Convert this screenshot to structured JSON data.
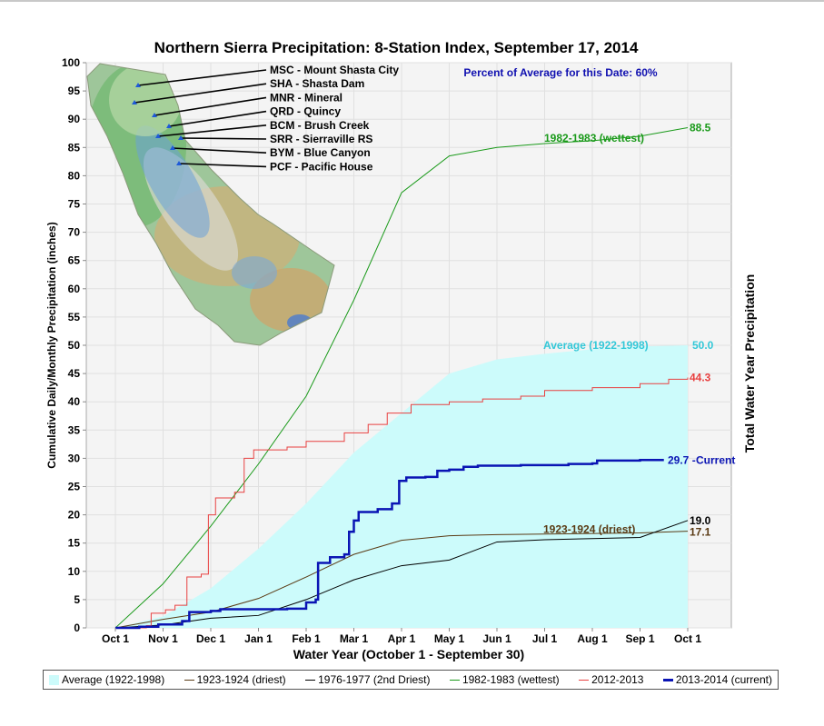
{
  "chart_data": {
    "type": "line",
    "title": "Northern Sierra Precipitation: 8-Station Index, September 17, 2014",
    "xlabel": "Water Year (October 1 - September 30)",
    "ylabel": "Cumulative Daily/Monthly Precipitation (inches)",
    "ylabel_right": "Total Water Year Precipitation",
    "annotation": "Percent of Average for this Date: 60%",
    "x_ticks": [
      "Oct 1",
      "Nov 1",
      "Dec 1",
      "Jan 1",
      "Feb 1",
      "Mar 1",
      "Apr 1",
      "May 1",
      "Jun 1",
      "Jul 1",
      "Aug 1",
      "Sep 1",
      "Oct 1"
    ],
    "y_ticks": [
      0,
      5,
      10,
      15,
      20,
      25,
      30,
      35,
      40,
      45,
      50,
      55,
      60,
      65,
      70,
      75,
      80,
      85,
      90,
      95,
      100
    ],
    "ylim": [
      0,
      100
    ],
    "grid": true,
    "legend_position": "bottom",
    "stations": [
      "MSC - Mount Shasta City",
      "SHA - Shasta Dam",
      "MNR - Mineral",
      "QRD - Quincy",
      "BCM - Brush Creek",
      "SRR - Sierraville RS",
      "BYM - Blue Canyon",
      "PCF - Pacific House"
    ],
    "series": [
      {
        "name": "Average (1922-1998)",
        "label": "Average (1922-1998)",
        "total": "50.0",
        "color": "#ccfbfb",
        "label_color": "#33c8d8",
        "points": [
          [
            0,
            0
          ],
          [
            1,
            2
          ],
          [
            2,
            7
          ],
          [
            3,
            14
          ],
          [
            4,
            22
          ],
          [
            5,
            31
          ],
          [
            6,
            38
          ],
          [
            7,
            45
          ],
          [
            8,
            47.5
          ],
          [
            9,
            48.5
          ],
          [
            10,
            49.3
          ],
          [
            11,
            49.8
          ],
          [
            12,
            50
          ]
        ]
      },
      {
        "name": "1923-1924 (driest)",
        "label": "1923-1924 (driest)",
        "total": "17.1",
        "color": "#5a3a14",
        "label_color": "#5a3a14",
        "points": [
          [
            0,
            0
          ],
          [
            1,
            1.5
          ],
          [
            2,
            2.8
          ],
          [
            3,
            5.2
          ],
          [
            4,
            9
          ],
          [
            5,
            13
          ],
          [
            6,
            15.5
          ],
          [
            7,
            16.3
          ],
          [
            8,
            16.5
          ],
          [
            9,
            16.6
          ],
          [
            10,
            16.7
          ],
          [
            11,
            16.8
          ],
          [
            12,
            17.1
          ]
        ]
      },
      {
        "name": "1976-1977 (2nd Driest)",
        "label": "",
        "total": "19.0",
        "color": "#000000",
        "label_color": "#000000",
        "points": [
          [
            0,
            0
          ],
          [
            1,
            0.5
          ],
          [
            2,
            1.7
          ],
          [
            3,
            2.2
          ],
          [
            4,
            5
          ],
          [
            5,
            8.5
          ],
          [
            6,
            11
          ],
          [
            7,
            12
          ],
          [
            8,
            15.2
          ],
          [
            9,
            15.6
          ],
          [
            10,
            15.8
          ],
          [
            11,
            16
          ],
          [
            12,
            19
          ]
        ]
      },
      {
        "name": "1982-1983 (wettest)",
        "label": "1982-1983 (wettest)",
        "total": "88.5",
        "color": "#1a9a1a",
        "label_color": "#1a9a1a",
        "points": [
          [
            0,
            0
          ],
          [
            1,
            7.8
          ],
          [
            2,
            18
          ],
          [
            3,
            29
          ],
          [
            4,
            41
          ],
          [
            5,
            58
          ],
          [
            6,
            77
          ],
          [
            7,
            83.5
          ],
          [
            8,
            85
          ],
          [
            9,
            85.7
          ],
          [
            10,
            86.2
          ],
          [
            11,
            87
          ],
          [
            12,
            88.5
          ]
        ]
      },
      {
        "name": "2012-2013",
        "label": "",
        "total": "44.3",
        "color": "#e84040",
        "label_color": "#e84040",
        "points": [
          [
            0,
            0
          ],
          [
            0.65,
            0.4
          ],
          [
            0.75,
            2.6
          ],
          [
            1.05,
            3.2
          ],
          [
            1.25,
            4
          ],
          [
            1.5,
            9
          ],
          [
            1.8,
            9.5
          ],
          [
            1.95,
            20
          ],
          [
            2.1,
            23
          ],
          [
            2.5,
            24
          ],
          [
            2.7,
            30
          ],
          [
            2.9,
            31.5
          ],
          [
            3.6,
            32
          ],
          [
            4,
            33
          ],
          [
            4.8,
            34.5
          ],
          [
            5.3,
            36
          ],
          [
            5.7,
            38
          ],
          [
            6.2,
            39.5
          ],
          [
            7,
            40
          ],
          [
            7.7,
            40.5
          ],
          [
            8.5,
            41
          ],
          [
            9,
            42
          ],
          [
            10,
            42.5
          ],
          [
            11,
            43.2
          ],
          [
            11.6,
            44
          ],
          [
            12,
            44.3
          ]
        ]
      },
      {
        "name": "2013-2014 (current)",
        "label": "Current",
        "total": "29.7",
        "color": "#0a14b4",
        "label_color": "#0a14b4",
        "points": [
          [
            0,
            0
          ],
          [
            0.5,
            0.2
          ],
          [
            0.9,
            0.6
          ],
          [
            1.4,
            1.2
          ],
          [
            1.55,
            2.8
          ],
          [
            2,
            3
          ],
          [
            2.2,
            3.3
          ],
          [
            3,
            3.3
          ],
          [
            3.6,
            3.4
          ],
          [
            4,
            4.5
          ],
          [
            4.2,
            5
          ],
          [
            4.25,
            11.5
          ],
          [
            4.5,
            12.5
          ],
          [
            4.8,
            13
          ],
          [
            4.9,
            17
          ],
          [
            5,
            19
          ],
          [
            5.1,
            20.5
          ],
          [
            5.5,
            21
          ],
          [
            5.8,
            22
          ],
          [
            5.95,
            26
          ],
          [
            6.1,
            26.6
          ],
          [
            6.5,
            26.7
          ],
          [
            6.75,
            27.8
          ],
          [
            7,
            28
          ],
          [
            7.3,
            28.5
          ],
          [
            7.6,
            28.7
          ],
          [
            8.5,
            28.8
          ],
          [
            9.5,
            29
          ],
          [
            10,
            29.1
          ],
          [
            10.1,
            29.6
          ],
          [
            11,
            29.7
          ],
          [
            11.5,
            29.7
          ]
        ]
      }
    ]
  },
  "legend": [
    {
      "label": "Average (1922-1998)",
      "color": "#ccfbfb",
      "kind": "area"
    },
    {
      "label": "1923-1924 (driest)",
      "color": "#5a3a14",
      "kind": "line"
    },
    {
      "label": "1976-1977 (2nd Driest)",
      "color": "#000000",
      "kind": "line"
    },
    {
      "label": "1982-1983 (wettest)",
      "color": "#1a9a1a",
      "kind": "line"
    },
    {
      "label": "2012-2013",
      "color": "#e84040",
      "kind": "line"
    },
    {
      "label": "2013-2014 (current)",
      "color": "#0a14b4",
      "kind": "thickline"
    }
  ]
}
